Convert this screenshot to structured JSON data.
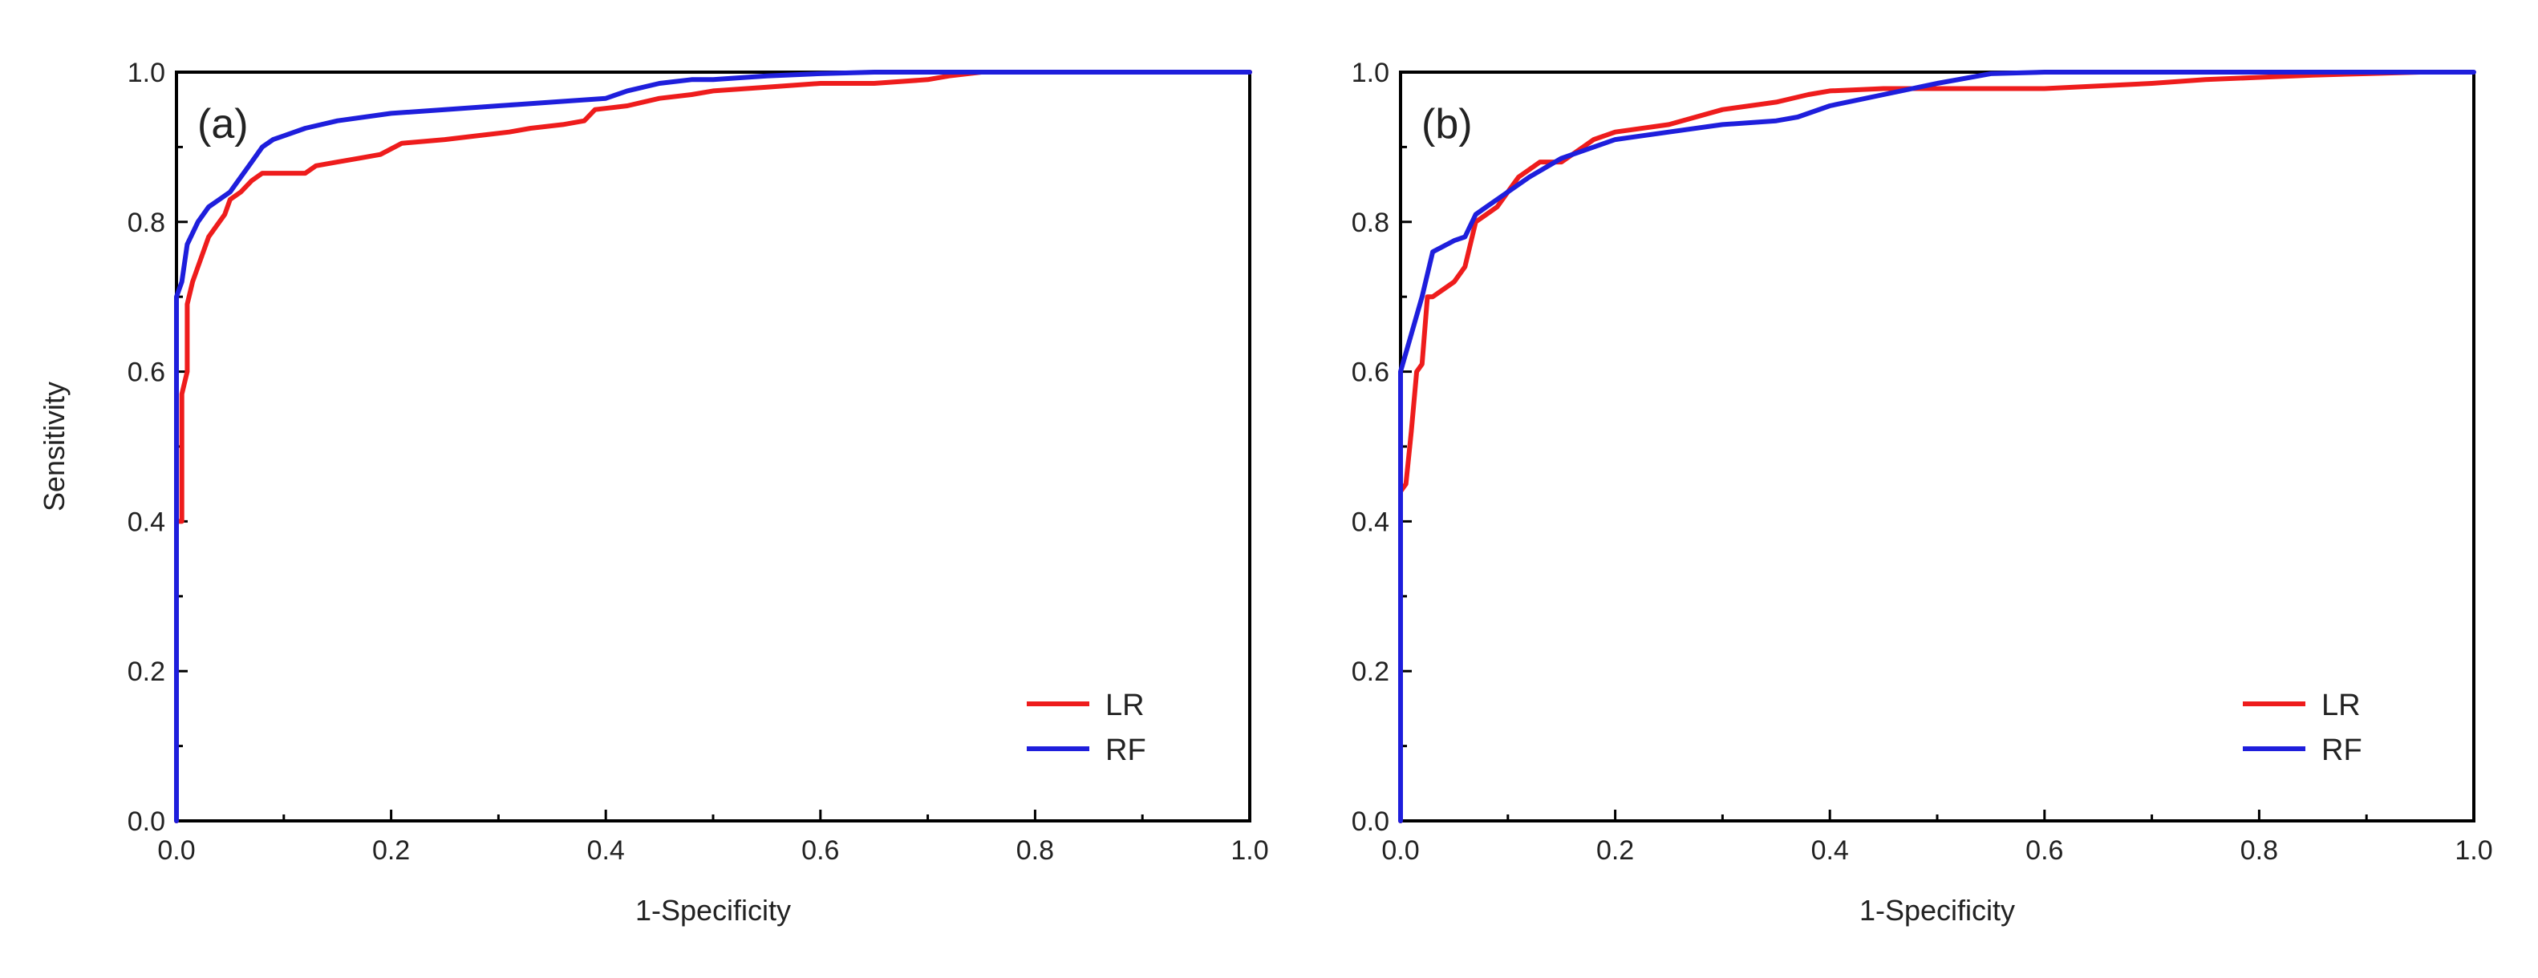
{
  "chart_data": [
    {
      "type": "line",
      "panel_label": "(a)",
      "title": "",
      "xlabel": "1-Specificity",
      "ylabel": "Sensitivity",
      "xlim": [
        0.0,
        1.0
      ],
      "ylim": [
        0.0,
        1.0
      ],
      "xticks": [
        "0.0",
        "0.2",
        "0.4",
        "0.6",
        "0.8",
        "1.0"
      ],
      "yticks": [
        "0.0",
        "0.2",
        "0.4",
        "0.6",
        "0.8",
        "1.0"
      ],
      "grid": false,
      "legend_position": "bottom-right",
      "series": [
        {
          "name": "LR",
          "color": "#ee1c1c",
          "x": [
            0.0,
            0.0,
            0.005,
            0.005,
            0.01,
            0.01,
            0.015,
            0.02,
            0.03,
            0.035,
            0.045,
            0.05,
            0.06,
            0.07,
            0.08,
            0.12,
            0.13,
            0.15,
            0.17,
            0.19,
            0.21,
            0.25,
            0.28,
            0.31,
            0.33,
            0.36,
            0.38,
            0.39,
            0.42,
            0.45,
            0.48,
            0.5,
            0.55,
            0.6,
            0.65,
            0.7,
            0.72,
            0.75,
            0.8,
            1.0
          ],
          "y": [
            0.0,
            0.4,
            0.4,
            0.57,
            0.6,
            0.69,
            0.72,
            0.74,
            0.78,
            0.79,
            0.81,
            0.83,
            0.84,
            0.855,
            0.865,
            0.865,
            0.875,
            0.88,
            0.885,
            0.89,
            0.905,
            0.91,
            0.915,
            0.92,
            0.925,
            0.93,
            0.935,
            0.95,
            0.955,
            0.965,
            0.97,
            0.975,
            0.98,
            0.985,
            0.985,
            0.99,
            0.995,
            1.0,
            1.0,
            1.0
          ]
        },
        {
          "name": "RF",
          "color": "#1e1edc",
          "x": [
            0.0,
            0.0,
            0.005,
            0.01,
            0.02,
            0.03,
            0.04,
            0.05,
            0.06,
            0.07,
            0.08,
            0.09,
            0.1,
            0.12,
            0.15,
            0.2,
            0.25,
            0.3,
            0.35,
            0.4,
            0.42,
            0.45,
            0.48,
            0.5,
            0.55,
            0.6,
            0.65,
            0.7,
            0.75,
            1.0
          ],
          "y": [
            0.0,
            0.7,
            0.72,
            0.77,
            0.8,
            0.82,
            0.83,
            0.84,
            0.86,
            0.88,
            0.9,
            0.91,
            0.915,
            0.925,
            0.935,
            0.945,
            0.95,
            0.955,
            0.96,
            0.965,
            0.975,
            0.985,
            0.99,
            0.99,
            0.995,
            0.998,
            1.0,
            1.0,
            1.0,
            1.0
          ]
        }
      ]
    },
    {
      "type": "line",
      "panel_label": "(b)",
      "title": "",
      "xlabel": "1-Specificity",
      "ylabel": "",
      "xlim": [
        0.0,
        1.0
      ],
      "ylim": [
        0.0,
        1.0
      ],
      "xticks": [
        "0.0",
        "0.2",
        "0.4",
        "0.6",
        "0.8",
        "1.0"
      ],
      "yticks": [
        "0.0",
        "0.2",
        "0.4",
        "0.6",
        "0.8",
        "1.0"
      ],
      "grid": false,
      "legend_position": "bottom-right",
      "series": [
        {
          "name": "LR",
          "color": "#ee1c1c",
          "x": [
            0.0,
            0.0,
            0.005,
            0.01,
            0.015,
            0.02,
            0.025,
            0.03,
            0.04,
            0.05,
            0.06,
            0.07,
            0.08,
            0.09,
            0.1,
            0.11,
            0.12,
            0.13,
            0.15,
            0.17,
            0.18,
            0.2,
            0.25,
            0.3,
            0.35,
            0.38,
            0.4,
            0.45,
            0.5,
            0.55,
            0.6,
            0.7,
            0.75,
            0.8,
            0.85,
            0.9,
            0.95
          ],
          "y": [
            0.0,
            0.44,
            0.45,
            0.52,
            0.6,
            0.61,
            0.7,
            0.7,
            0.71,
            0.72,
            0.74,
            0.8,
            0.81,
            0.82,
            0.84,
            0.86,
            0.87,
            0.88,
            0.88,
            0.9,
            0.91,
            0.92,
            0.93,
            0.95,
            0.96,
            0.97,
            0.975,
            0.978,
            0.978,
            0.978,
            0.978,
            0.985,
            0.99,
            0.993,
            0.996,
            0.998,
            1.0
          ]
        },
        {
          "name": "RF",
          "color": "#1e1edc",
          "x": [
            0.0,
            0.0,
            0.01,
            0.02,
            0.03,
            0.05,
            0.06,
            0.07,
            0.08,
            0.1,
            0.12,
            0.15,
            0.2,
            0.25,
            0.3,
            0.35,
            0.37,
            0.4,
            0.45,
            0.5,
            0.55,
            0.6,
            1.0
          ],
          "y": [
            0.0,
            0.6,
            0.65,
            0.7,
            0.76,
            0.775,
            0.78,
            0.81,
            0.82,
            0.84,
            0.86,
            0.885,
            0.91,
            0.92,
            0.93,
            0.935,
            0.94,
            0.955,
            0.97,
            0.985,
            0.998,
            1.0,
            1.0
          ]
        }
      ]
    }
  ]
}
